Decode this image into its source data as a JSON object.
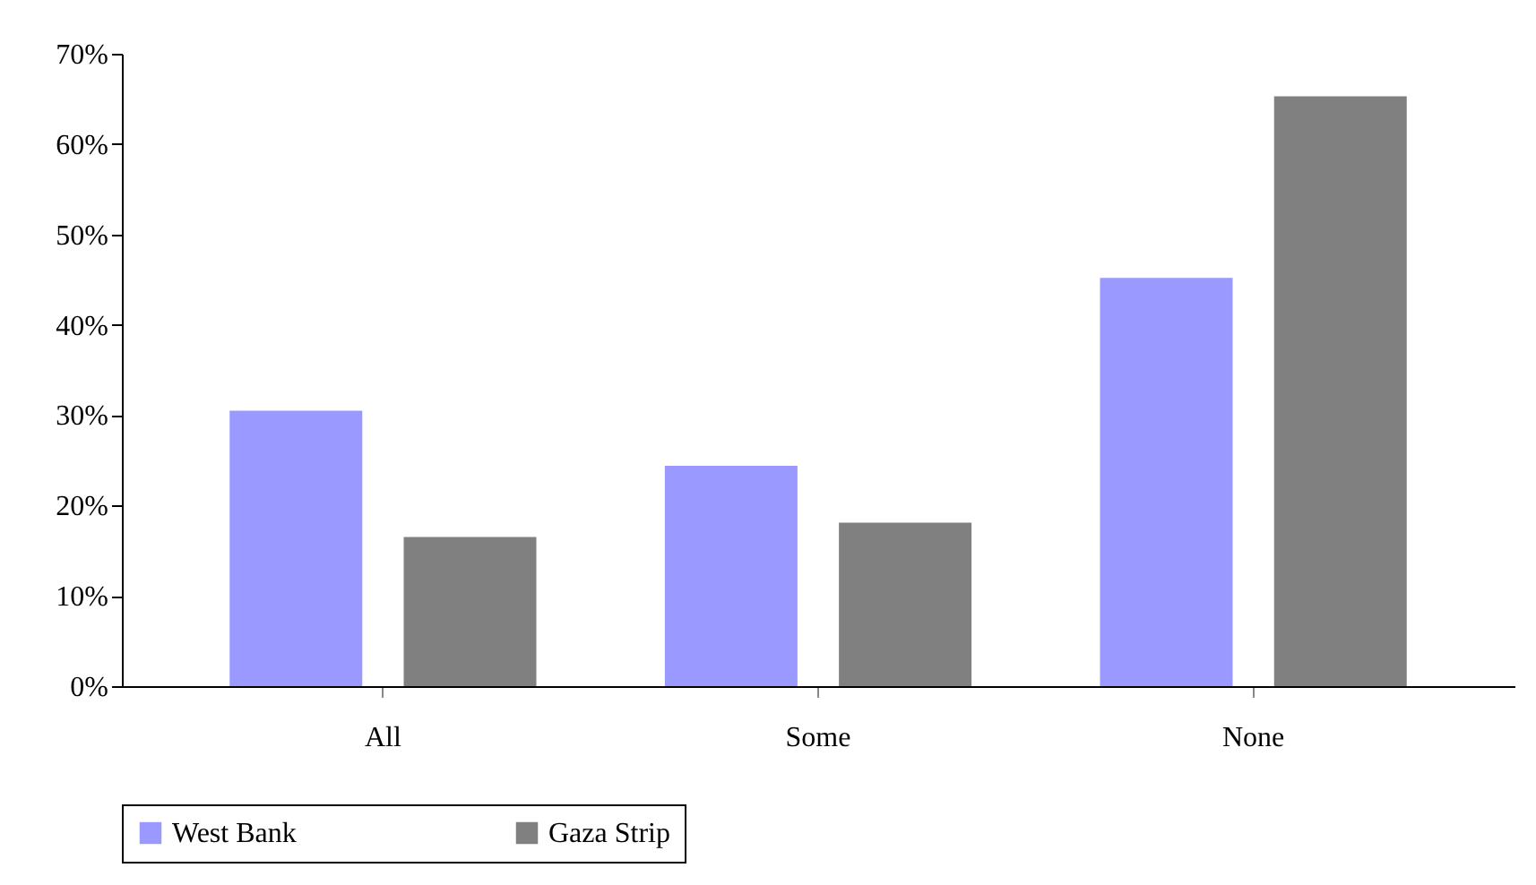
{
  "chart_data": {
    "type": "bar",
    "categories": [
      "All",
      "Some",
      "None"
    ],
    "series": [
      {
        "name": "West Bank",
        "color": "#9999ff",
        "values": [
          30.5,
          24.4,
          45.2
        ]
      },
      {
        "name": "Gaza Strip",
        "color": "#808080",
        "values": [
          16.5,
          18.1,
          65.3
        ]
      }
    ],
    "ylim": [
      0,
      70
    ],
    "yticks": [
      {
        "value": 0,
        "label": "0%"
      },
      {
        "value": 10,
        "label": "10%"
      },
      {
        "value": 20,
        "label": "20%"
      },
      {
        "value": 30,
        "label": "30%"
      },
      {
        "value": 40,
        "label": "40%"
      },
      {
        "value": 50,
        "label": "50%"
      },
      {
        "value": 60,
        "label": "60%"
      },
      {
        "value": 70,
        "label": "70%"
      }
    ],
    "grid": false,
    "legend": "bottom"
  }
}
